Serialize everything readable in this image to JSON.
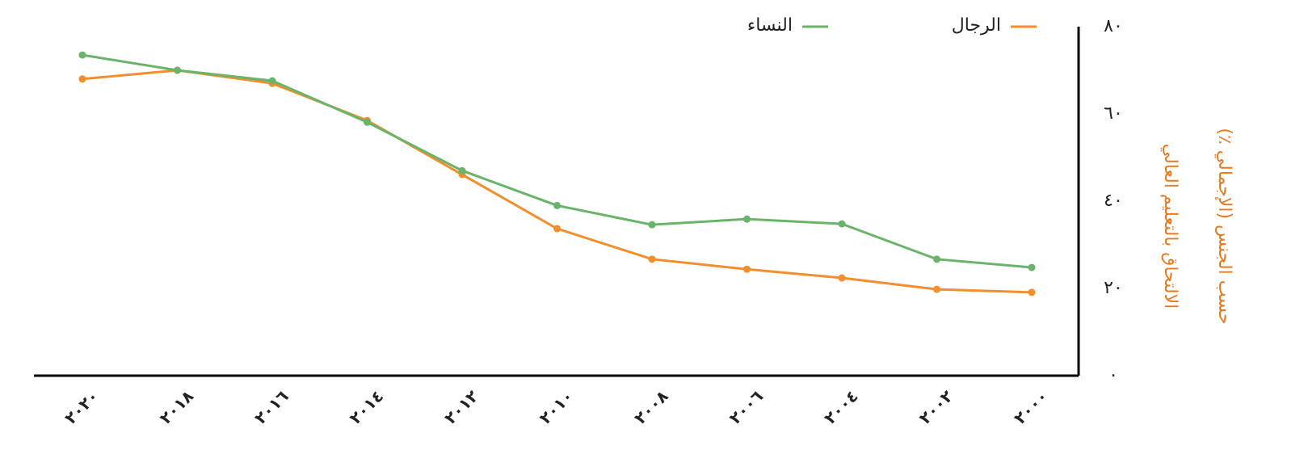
{
  "chart_data": {
    "type": "line",
    "y_label": [
      "الالتحاق بالتعليم العالي",
      "حسب الجنس (الإجمالي ٪)"
    ],
    "y_label_color": "#e8791f",
    "categories": [
      "٢٠٢٠",
      "٢٠١٨",
      "٢٠١٦",
      "٢٠١٤",
      "٢٠١٢",
      "٢٠١٠",
      "٢٠٠٨",
      "٢٠٠٦",
      "٢٠٠٤",
      "٢٠٠٢",
      "٢٠٠٠"
    ],
    "series": [
      {
        "name": "الرجال",
        "color": "#f28e2b",
        "values": [
          68,
          70,
          67,
          58.5,
          46.1,
          33.7,
          26.7,
          24.4,
          22.4,
          19.8,
          19.1
        ]
      },
      {
        "name": "النساء",
        "color": "#6ab36a",
        "values": [
          73.5,
          70,
          67.6,
          58.1,
          47,
          39,
          34.6,
          35.9,
          34.8,
          26.7,
          24.8
        ]
      }
    ],
    "ylim": [
      0,
      80
    ],
    "yticks": [
      {
        "value": 0,
        "label": "٠"
      },
      {
        "value": 20,
        "label": "٢٠"
      },
      {
        "value": 40,
        "label": "٤٠"
      },
      {
        "value": 60,
        "label": "٦٠"
      },
      {
        "value": 80,
        "label": "٨٠"
      }
    ],
    "y_axis_side": "right",
    "grid": false,
    "legend": "top"
  }
}
